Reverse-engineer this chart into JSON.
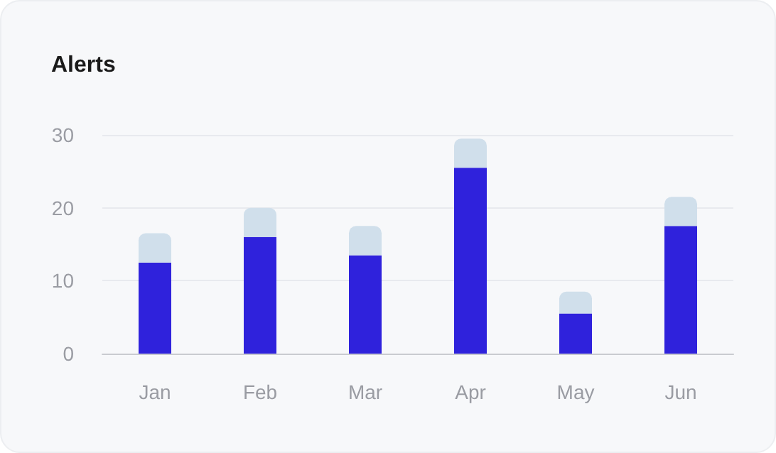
{
  "chart_data": {
    "type": "bar",
    "title": "Alerts",
    "categories": [
      "Jan",
      "Feb",
      "Mar",
      "Apr",
      "May",
      "Jun"
    ],
    "stacked": true,
    "series": [
      {
        "color": "#2f22dc",
        "values": [
          12.5,
          16,
          13.5,
          25.5,
          5.5,
          17.5
        ]
      },
      {
        "color": "#d0dfeb",
        "values": [
          4,
          4,
          4,
          4,
          3,
          4
        ]
      }
    ],
    "ylim": [
      0,
      30
    ],
    "yticks": [
      0,
      10,
      20,
      30
    ],
    "grid": "y"
  }
}
